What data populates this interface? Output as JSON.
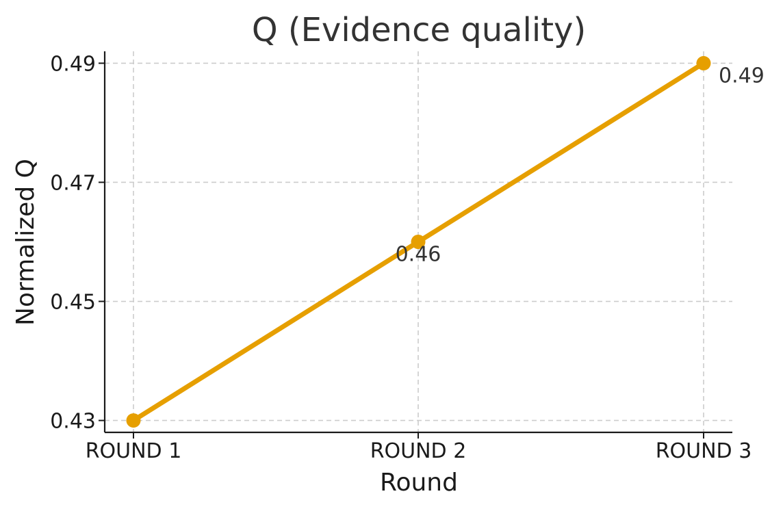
{
  "chart_data": {
    "type": "line",
    "title": "Q (Evidence quality)",
    "xlabel": "Round",
    "ylabel": "Normalized Q",
    "categories": [
      "ROUND 1",
      "ROUND 2",
      "ROUND 3"
    ],
    "series": [
      {
        "values": [
          0.43,
          0.46,
          0.49
        ],
        "color": "#E69F00"
      }
    ],
    "data_labels": [
      "",
      "0.46",
      "0.49"
    ],
    "ylim": [
      0.428,
      0.492
    ],
    "yticks": [
      0.43,
      0.45,
      0.47,
      0.49
    ],
    "ytick_labels": [
      "0.43",
      "0.45",
      "0.47",
      "0.49"
    ],
    "grid": true,
    "colors": {
      "line": "#E69F00",
      "grid": "#cccccc",
      "axis": "#1a1a1a"
    }
  }
}
